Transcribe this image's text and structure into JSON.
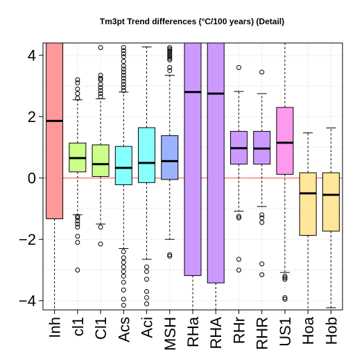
{
  "chart_data": {
    "type": "boxplot",
    "title": "Tm3pt Trend differences (°C/100 years) (Detail)",
    "xlabel": "",
    "ylabel": "",
    "ylim": [
      -4.3,
      4.4
    ],
    "yticks": [
      -4,
      -2,
      0,
      2,
      4
    ],
    "ytick_labels": [
      "−4",
      "−2",
      "0",
      "2",
      "4"
    ],
    "grid": true,
    "reference_line": {
      "y": 0,
      "color": "#ff4d4d"
    },
    "categories": [
      "Inh",
      "cl1",
      "Cl1",
      "Acs",
      "Aci",
      "MSH",
      "RHa",
      "RHA",
      "RHr",
      "RHR",
      "US1",
      "Hoa",
      "Hob"
    ],
    "boxes": [
      {
        "label": "Inh",
        "color": "#ff9999",
        "q1": -1.33,
        "median": 1.86,
        "q3": 4.4,
        "whisker_low": null,
        "whisker_high": null,
        "outliers": []
      },
      {
        "label": "cl1",
        "color": "#ccff88",
        "q1": 0.2,
        "median": 0.65,
        "q3": 1.14,
        "whisker_low": -1.2,
        "whisker_high": 2.55,
        "outliers": [
          3.2,
          3.1,
          2.9,
          2.75,
          2.6,
          -1.25,
          -1.3,
          -1.4,
          -1.5,
          -1.6,
          -1.9,
          -2.1,
          -3.0
        ]
      },
      {
        "label": "Cl1",
        "color": "#ccff88",
        "q1": 0.05,
        "median": 0.45,
        "q3": 1.08,
        "whisker_low": -1.5,
        "whisker_high": 2.58,
        "outliers": [
          4.25,
          3.35,
          3.25,
          3.2,
          3.05,
          2.95,
          2.85,
          2.75,
          2.65,
          -1.6,
          -2.15
        ]
      },
      {
        "label": "Acs",
        "color": "#88ffff",
        "q1": -0.22,
        "median": 0.33,
        "q3": 1.03,
        "whisker_low": -2.3,
        "whisker_high": 2.8,
        "outliers": [
          4.25,
          4.15,
          4.05,
          3.95,
          3.8,
          3.65,
          3.55,
          3.45,
          3.35,
          3.25,
          3.15,
          3.05,
          2.95,
          2.85,
          -2.4,
          -2.6,
          -2.75,
          -2.9,
          -3.05,
          -3.2,
          -3.4,
          -3.65,
          -3.95,
          -4.15
        ]
      },
      {
        "label": "Aci",
        "color": "#88ffff",
        "q1": -0.15,
        "median": 0.49,
        "q3": 1.64,
        "whisker_low": -2.65,
        "whisker_high": 4.27,
        "outliers": [
          -2.9,
          -3.05,
          -3.3,
          -3.7,
          -3.9,
          -4.1
        ]
      },
      {
        "label": "MSH",
        "color": "#99b3ff",
        "q1": -0.05,
        "median": 0.55,
        "q3": 1.38,
        "whisker_low": -2.0,
        "whisker_high": 3.35,
        "outliers": [
          4.25,
          4.2,
          4.15,
          4.1,
          4.05,
          4.0,
          3.95,
          3.9,
          3.85,
          3.6,
          3.5,
          -2.5,
          -2.55
        ]
      },
      {
        "label": "RHa",
        "color": "#cc99ff",
        "q1": -3.18,
        "median": 2.8,
        "q3": 4.4,
        "whisker_low": null,
        "whisker_high": null,
        "outliers": []
      },
      {
        "label": "RHA",
        "color": "#cc99ff",
        "q1": -3.42,
        "median": 2.75,
        "q3": 4.4,
        "whisker_low": null,
        "whisker_high": null,
        "outliers": []
      },
      {
        "label": "RHr",
        "color": "#cc99ff",
        "q1": 0.45,
        "median": 0.97,
        "q3": 1.52,
        "whisker_low": -1.08,
        "whisker_high": 2.82,
        "outliers": [
          3.6,
          -1.25,
          -1.3,
          -2.65,
          -3.0
        ]
      },
      {
        "label": "RHR",
        "color": "#cc99ff",
        "q1": 0.45,
        "median": 0.96,
        "q3": 1.52,
        "whisker_low": -0.93,
        "whisker_high": 2.75,
        "outliers": [
          3.45,
          -1.2,
          -1.3,
          -1.45,
          -2.8,
          -3.15
        ]
      },
      {
        "label": "US1",
        "color": "#ff99ee",
        "q1": 0.12,
        "median": 1.15,
        "q3": 2.3,
        "whisker_low": -3.08,
        "whisker_high": 4.4,
        "outliers": [
          -3.2,
          -3.25,
          -3.3,
          -3.9,
          -3.95
        ]
      },
      {
        "label": "Hoa",
        "color": "#ffe699",
        "q1": -1.87,
        "median": -0.5,
        "q3": 0.17,
        "whisker_low": null,
        "whisker_high": 1.47,
        "outliers": []
      },
      {
        "label": "Hob",
        "color": "#ffe699",
        "q1": -1.73,
        "median": -0.55,
        "q3": 0.17,
        "whisker_low": -4.23,
        "whisker_high": 1.63,
        "outliers": []
      }
    ]
  }
}
